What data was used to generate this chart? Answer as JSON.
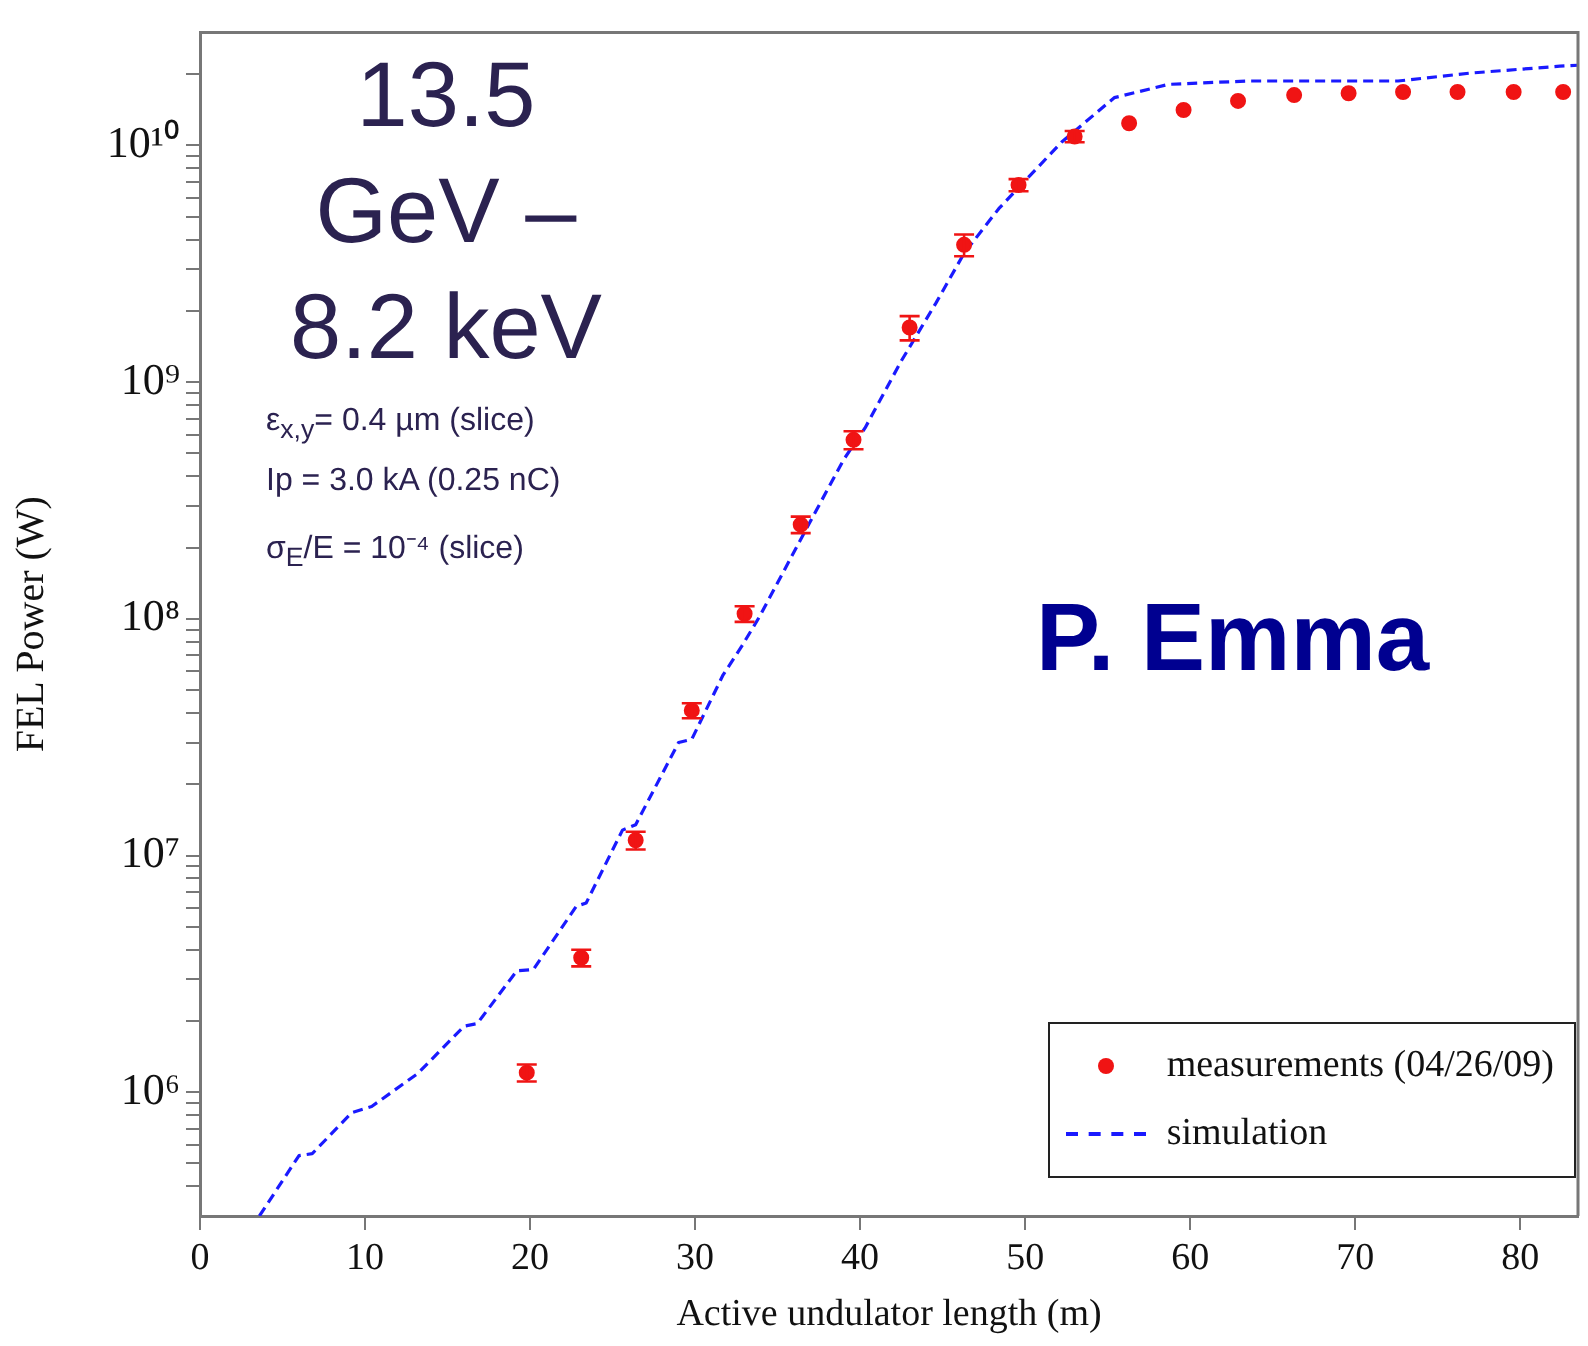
{
  "chart_data": {
    "type": "scatter",
    "xlabel": "Active undulator length (m)",
    "ylabel": "FEL Power (W)",
    "xlim": [
      0,
      83.5
    ],
    "xticks": [
      0,
      10,
      20,
      30,
      40,
      50,
      60,
      70,
      80
    ],
    "ylim": [
      300000,
      30000000000
    ],
    "yticks": [
      {
        "value": 400000,
        "label": null
      },
      {
        "value": 500000,
        "label": null
      },
      {
        "value": 600000,
        "label": null
      },
      {
        "value": 700000,
        "label": null
      },
      {
        "value": 800000,
        "label": null
      },
      {
        "value": 900000,
        "label": null
      },
      {
        "value": 1000000,
        "label": "10⁶"
      },
      {
        "value": 2000000,
        "label": null
      },
      {
        "value": 3000000,
        "label": null
      },
      {
        "value": 4000000,
        "label": null
      },
      {
        "value": 5000000,
        "label": null
      },
      {
        "value": 6000000,
        "label": null
      },
      {
        "value": 7000000,
        "label": null
      },
      {
        "value": 8000000,
        "label": null
      },
      {
        "value": 9000000,
        "label": null
      },
      {
        "value": 10000000,
        "label": "10⁷"
      },
      {
        "value": 20000000,
        "label": null
      },
      {
        "value": 30000000,
        "label": null
      },
      {
        "value": 40000000,
        "label": null
      },
      {
        "value": 50000000,
        "label": null
      },
      {
        "value": 60000000,
        "label": null
      },
      {
        "value": 70000000,
        "label": null
      },
      {
        "value": 80000000,
        "label": null
      },
      {
        "value": 90000000,
        "label": null
      },
      {
        "value": 100000000,
        "label": "10⁸"
      },
      {
        "value": 200000000,
        "label": null
      },
      {
        "value": 300000000,
        "label": null
      },
      {
        "value": 400000000,
        "label": null
      },
      {
        "value": 500000000,
        "label": null
      },
      {
        "value": 600000000,
        "label": null
      },
      {
        "value": 700000000,
        "label": null
      },
      {
        "value": 800000000,
        "label": null
      },
      {
        "value": 900000000,
        "label": null
      },
      {
        "value": 1000000000,
        "label": "10⁹"
      },
      {
        "value": 2000000000,
        "label": null
      },
      {
        "value": 3000000000,
        "label": null
      },
      {
        "value": 4000000000,
        "label": null
      },
      {
        "value": 5000000000,
        "label": null
      },
      {
        "value": 6000000000,
        "label": null
      },
      {
        "value": 7000000000,
        "label": null
      },
      {
        "value": 8000000000,
        "label": null
      },
      {
        "value": 9000000000,
        "label": null
      },
      {
        "value": 10000000000,
        "label": "10¹⁰"
      },
      {
        "value": 20000000000,
        "label": null
      }
    ],
    "log": "y",
    "grid": false,
    "legend": "bottom right",
    "annotations": [
      "13.5 GeV – 8.2 keV",
      "ε$_{x,y}$= 0.4 µm (slice)",
      "Ip = 3.0 kA (0.25 nC)",
      "σ$_{E}$/E = 10⁻⁴ (slice)",
      "P. Emma"
    ],
    "series": [
      {
        "name": "measurements (04/26/09)",
        "color": "#f01414",
        "marker": "circle",
        "x": [
          19.8,
          23.1,
          26.4,
          29.8,
          33.0,
          36.4,
          39.6,
          43.0,
          46.3,
          49.6,
          53.0,
          56.3,
          59.6,
          62.9,
          66.3,
          69.6,
          72.9,
          76.2,
          79.6,
          82.6
        ],
        "values": [
          1210000,
          3700000,
          11600000,
          41000000,
          105000000,
          250000000,
          570000000,
          1700000000,
          3800000000,
          6800000000,
          10900000000,
          12400000000,
          14100000000,
          15400000000,
          16300000000,
          16600000000,
          16800000000,
          16800000000,
          16800000000,
          16800000000
        ],
        "errors": [
          100000,
          300000,
          1000000,
          3000000,
          8000000,
          20000000,
          50000000,
          200000000,
          400000000,
          400000000,
          600000000,
          null,
          null,
          null,
          null,
          null,
          null,
          null,
          null,
          null
        ]
      },
      {
        "name": "simulation",
        "type": "line",
        "color": "#1a1aff",
        "line_style": "dashed",
        "marker": "none",
        "x": [
          3.6,
          6.0,
          6.8,
          9.2,
          10.4,
          13.2,
          16.0,
          16.8,
          19.2,
          20.2,
          22.8,
          23.4,
          25.6,
          26.4,
          29.0,
          29.8,
          31.7,
          32.8,
          33.9,
          36.6,
          39.0,
          40.3,
          42.5,
          44.6,
          46.3,
          48.4,
          52.2,
          55.4,
          58.7,
          63.5,
          72.6,
          77.0,
          82.4,
          83.5
        ],
        "values": [
          300000,
          540000,
          550000,
          820000,
          870000,
          1200000,
          1900000,
          1950000,
          3260000,
          3300000,
          6100000,
          6300000,
          12800000,
          13500000,
          30000000,
          31000000,
          58000000,
          76000000,
          102000000,
          230000000,
          470000000,
          640000000,
          1230000000,
          2160000000,
          3500000000,
          5400000000,
          10300000000,
          15900000000,
          18100000000,
          18700000000,
          18700000000,
          20200000000,
          21600000000,
          21800000000
        ]
      }
    ]
  }
}
